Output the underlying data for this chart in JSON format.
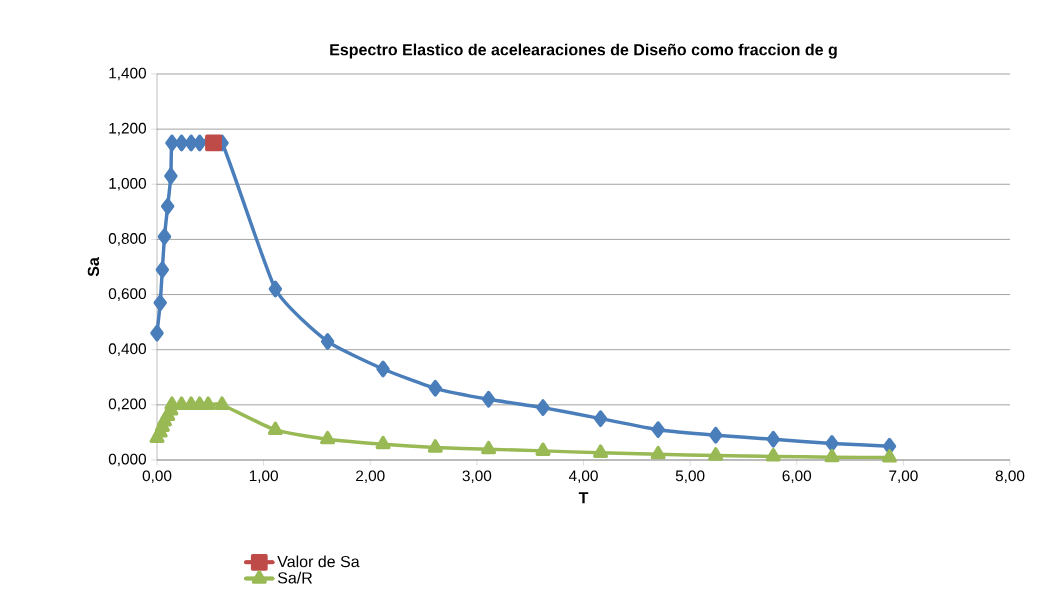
{
  "chart_data": {
    "type": "line",
    "title": "Espectro Elastico de acelearaciones de Diseño como fraccion de g",
    "xlabel": "T",
    "ylabel": "Sa",
    "xlim": [
      0,
      8
    ],
    "ylim": [
      0,
      1.4
    ],
    "xticks": [
      {
        "value": 0,
        "label": "0,00"
      },
      {
        "value": 1,
        "label": "1,00"
      },
      {
        "value": 2,
        "label": "2,00"
      },
      {
        "value": 3,
        "label": "3,00"
      },
      {
        "value": 4,
        "label": "4,00"
      },
      {
        "value": 5,
        "label": "5,00"
      },
      {
        "value": 6,
        "label": "6,00"
      },
      {
        "value": 7,
        "label": "7,00"
      },
      {
        "value": 8,
        "label": "8,00"
      }
    ],
    "yticks": [
      {
        "value": 0,
        "label": "0,000"
      },
      {
        "value": 0.2,
        "label": "0,200"
      },
      {
        "value": 0.4,
        "label": "0,400"
      },
      {
        "value": 0.6,
        "label": "0,600"
      },
      {
        "value": 0.8,
        "label": "0,800"
      },
      {
        "value": 1.0,
        "label": "1,000"
      },
      {
        "value": 1.2,
        "label": "1,200"
      },
      {
        "value": 1.4,
        "label": "1,400"
      }
    ],
    "grid": "y",
    "legend": "bottom",
    "series": [
      {
        "color": "#4a7ebb",
        "marker": "diamond",
        "x": [
          0,
          0.03,
          0.05,
          0.07,
          0.1,
          0.13,
          0.14,
          0.23,
          0.32,
          0.4,
          0.48,
          0.61,
          1.11,
          1.6,
          2.12,
          2.61,
          3.11,
          3.62,
          4.16,
          4.7,
          5.24,
          5.78,
          6.33,
          6.87
        ],
        "values": [
          0.46,
          0.57,
          0.69,
          0.81,
          0.92,
          1.03,
          1.15,
          1.15,
          1.15,
          1.15,
          null,
          1.15,
          0.62,
          0.43,
          0.33,
          0.26,
          0.22,
          0.19,
          0.15,
          0.11,
          0.09,
          0.075,
          0.06,
          0.05
        ]
      },
      {
        "name": "Valor de Sa",
        "color": "#be4b48",
        "marker": "square",
        "x": [
          0.53
        ],
        "values": [
          1.15
        ]
      },
      {
        "name": "Sa/R",
        "color": "#98b954",
        "marker": "triangle",
        "x": [
          0,
          0.03,
          0.05,
          0.07,
          0.1,
          0.13,
          0.14,
          0.23,
          0.32,
          0.4,
          0.48,
          0.61,
          1.11,
          1.6,
          2.12,
          2.61,
          3.11,
          3.62,
          4.16,
          4.7,
          5.24,
          5.78,
          6.33,
          6.87
        ],
        "values": [
          0.08,
          0.1,
          0.12,
          0.14,
          0.16,
          0.18,
          0.2,
          0.2,
          0.2,
          0.2,
          0.2,
          0.2,
          0.109,
          0.075,
          0.057,
          0.045,
          0.039,
          0.033,
          0.026,
          0.021,
          0.016,
          0.013,
          0.01,
          0.009
        ]
      }
    ]
  }
}
